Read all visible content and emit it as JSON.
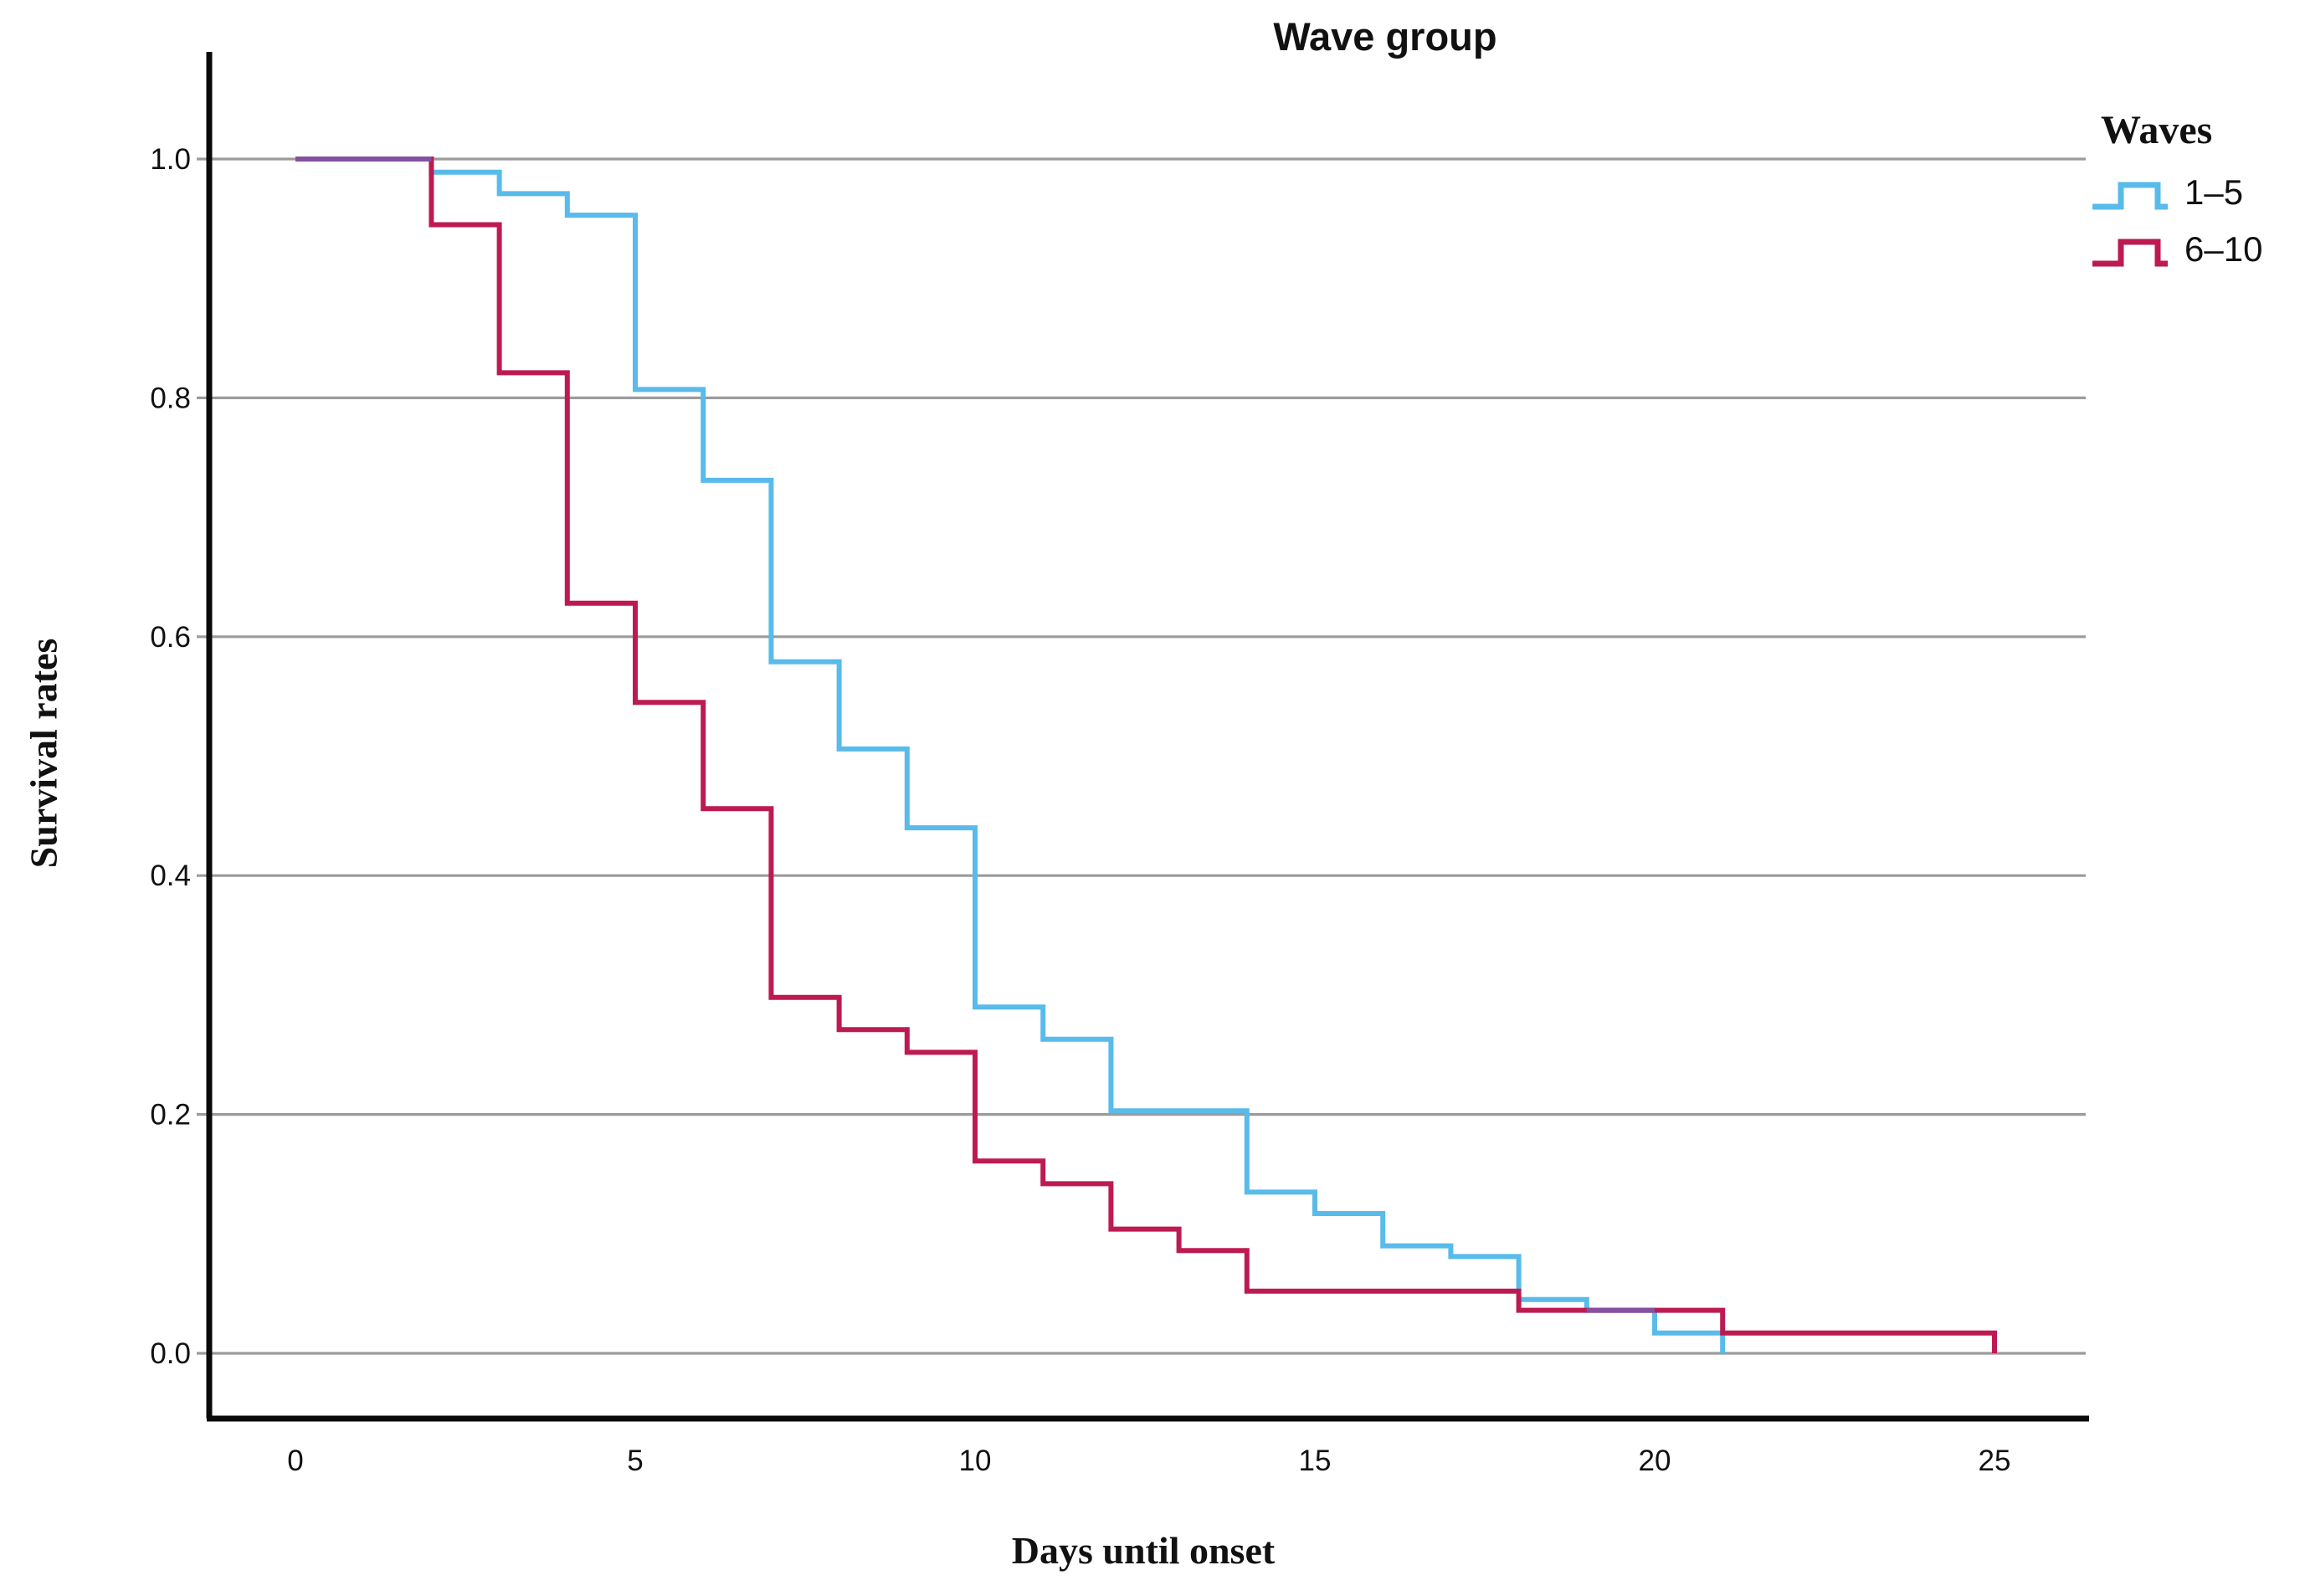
{
  "page": {
    "background": "#ffffff"
  },
  "chart_data": {
    "type": "line",
    "subtype": "step-survival-kaplan-meier",
    "title": "Wave group",
    "xlabel": "Days until onset",
    "ylabel": "Survival rates",
    "xlim": [
      0,
      25
    ],
    "ylim": [
      0.0,
      1.0
    ],
    "xticks": [
      0,
      5,
      10,
      15,
      20,
      25
    ],
    "yticks": [
      "1.0",
      "0.8",
      "0.6",
      "0.4",
      "0.2",
      "0.0"
    ],
    "ytick_values": [
      1.0,
      0.8,
      0.6,
      0.4,
      0.2,
      0.0
    ],
    "grid": "horizontal",
    "legend": {
      "title": "Waves",
      "position": "top-right",
      "entries": [
        {
          "label": "1–5",
          "color": "#58BBEA"
        },
        {
          "label": "6–10",
          "color": "#BE1A52"
        }
      ]
    },
    "series": [
      {
        "name": "waves-1-5",
        "label": "1–5",
        "color": "#58BBEA",
        "points": [
          [
            0,
            1.0
          ],
          [
            2,
            0.989
          ],
          [
            3,
            0.971
          ],
          [
            4,
            0.953
          ],
          [
            5,
            0.807
          ],
          [
            6,
            0.731
          ],
          [
            7,
            0.579
          ],
          [
            8,
            0.506
          ],
          [
            9,
            0.44
          ],
          [
            10,
            0.29
          ],
          [
            11,
            0.263
          ],
          [
            12,
            0.203
          ],
          [
            14,
            0.135
          ],
          [
            15,
            0.117
          ],
          [
            16,
            0.09
          ],
          [
            17,
            0.081
          ],
          [
            18,
            0.045
          ],
          [
            19,
            0.036
          ],
          [
            20,
            0.017
          ],
          [
            21,
            0.0
          ]
        ]
      },
      {
        "name": "waves-6-10",
        "label": "6–10",
        "color": "#BE1A52",
        "points": [
          [
            0,
            1.0
          ],
          [
            2,
            0.945
          ],
          [
            3,
            0.821
          ],
          [
            4,
            0.628
          ],
          [
            5,
            0.545
          ],
          [
            6,
            0.456
          ],
          [
            7,
            0.298
          ],
          [
            8,
            0.271
          ],
          [
            9,
            0.252
          ],
          [
            10,
            0.161
          ],
          [
            11,
            0.142
          ],
          [
            12,
            0.104
          ],
          [
            13,
            0.086
          ],
          [
            14,
            0.052
          ],
          [
            18,
            0.036
          ],
          [
            21,
            0.017
          ],
          [
            25,
            0.0
          ]
        ]
      }
    ],
    "overlap_segments": [
      {
        "x_from": 0,
        "x_to": 2,
        "value": 1.0,
        "color": "#8650A0"
      },
      {
        "x_from": 19,
        "x_to": 20,
        "value": 0.036,
        "color": "#8650A0"
      }
    ],
    "colors": {
      "grid": "#9B9B9B",
      "axis": "#0a0a0a",
      "text": "#111111"
    }
  }
}
